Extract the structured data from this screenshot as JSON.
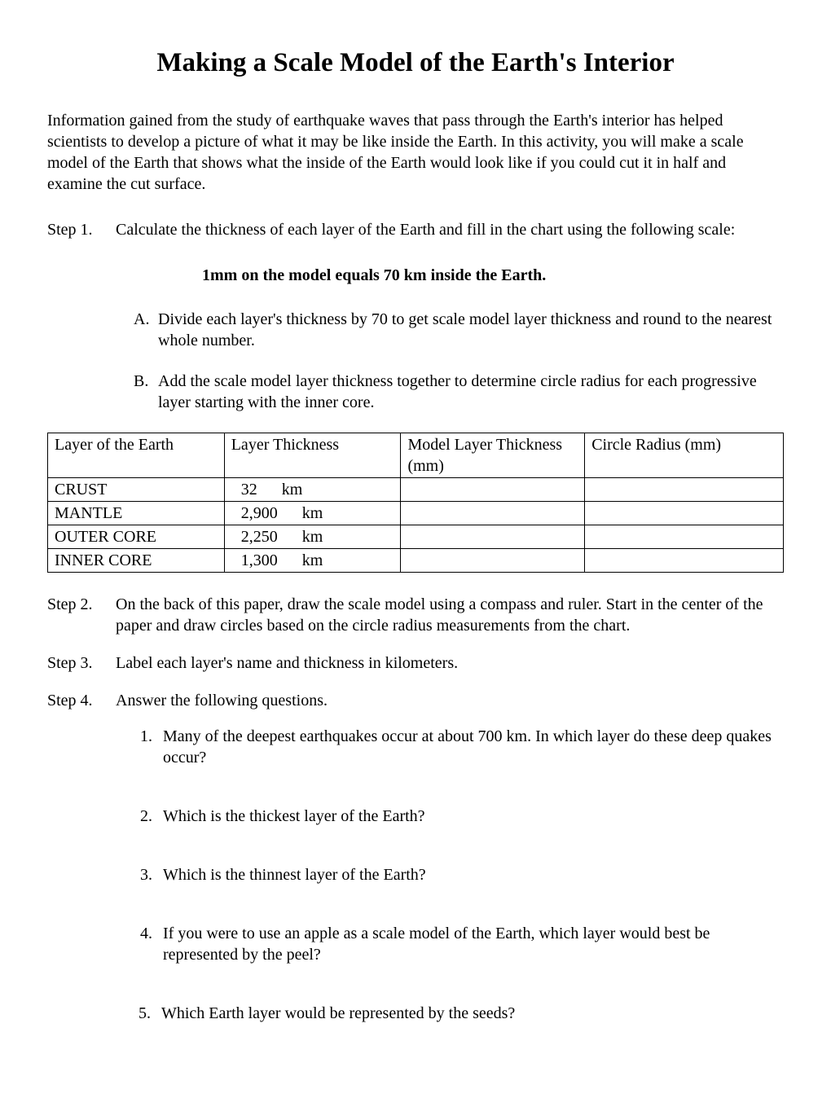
{
  "title": "Making a Scale Model of the Earth's Interior",
  "intro": "Information gained from the study of earthquake waves that pass through the Earth's interior has helped scientists to develop a picture of what it may be like inside the Earth. In this activity, you will make a scale model of the Earth that shows what the inside of the Earth would look like if you could cut it in half and examine the cut surface.",
  "step1": {
    "label": "Step 1.",
    "text": "Calculate the thickness of each layer of the Earth and fill in the chart using the following scale:",
    "scale_note": "1mm on the model equals 70 km inside the Earth.",
    "subA": {
      "marker": "A.",
      "text": "Divide each layer's thickness by 70 to get scale model layer thickness and round to the nearest whole number."
    },
    "subB": {
      "marker": "B.",
      "text": "Add the scale model layer thickness together to determine circle radius for each progressive layer starting with the inner core."
    }
  },
  "table": {
    "headers": {
      "c1": "Layer of the Earth",
      "c2": "Layer Thickness",
      "c3": "Model Layer Thickness (mm)",
      "c4": "Circle Radius (mm)"
    },
    "rows": [
      {
        "layer": "CRUST",
        "value": "32",
        "unit": "km"
      },
      {
        "layer": "MANTLE",
        "value": "2,900",
        "unit": "km"
      },
      {
        "layer": "OUTER CORE",
        "value": "2,250",
        "unit": "km"
      },
      {
        "layer": "INNER CORE",
        "value": "1,300",
        "unit": "km"
      }
    ],
    "col_widths": [
      "24%",
      "24%",
      "25%",
      "27%"
    ]
  },
  "step2": {
    "label": "Step 2.",
    "text": "On the back of this paper, draw the scale model using a compass and ruler. Start in the center of the paper and draw circles based on the circle radius measurements from the chart."
  },
  "step3": {
    "label": "Step 3.",
    "text": "Label each layer's name and thickness in kilometers."
  },
  "step4": {
    "label": "Step 4.",
    "text": "Answer the following questions.",
    "questions": [
      {
        "marker": "1.",
        "text": "Many of the deepest earthquakes occur at about 700 km. In which layer do these deep quakes occur?"
      },
      {
        "marker": "2.",
        "text": "Which is the thickest layer of the Earth?"
      },
      {
        "marker": "3.",
        "text": "Which is the thinnest layer of the Earth?"
      },
      {
        "marker": "4.",
        "text": "If you were to use an apple as a scale model of the Earth, which layer would best be represented by the peel?"
      },
      {
        "marker": "5.",
        "text": "Which Earth layer would be represented by the seeds?"
      }
    ]
  },
  "colors": {
    "text": "#000000",
    "background": "#ffffff",
    "border": "#000000"
  }
}
